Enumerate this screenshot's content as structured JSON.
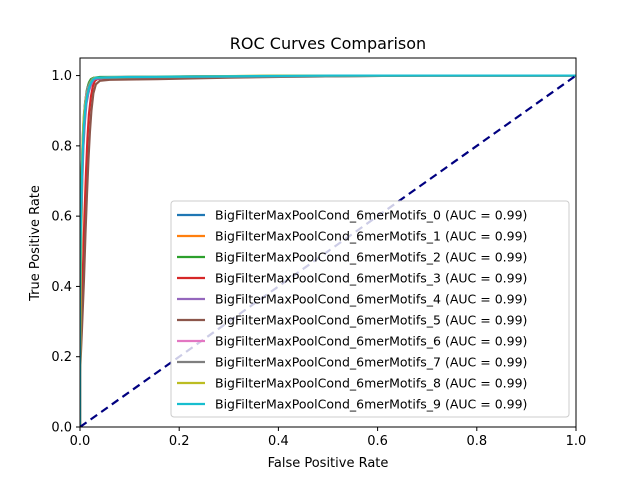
{
  "chart_data": {
    "type": "line",
    "title": "ROC Curves Comparison",
    "xlabel": "False Positive Rate",
    "ylabel": "True Positive Rate",
    "xlim": [
      0,
      1
    ],
    "ylim": [
      0,
      1.05
    ],
    "xticks": [
      "0.0",
      "0.2",
      "0.4",
      "0.6",
      "0.8",
      "1.0"
    ],
    "yticks": [
      "0.0",
      "0.2",
      "0.4",
      "0.6",
      "0.8",
      "1.0"
    ],
    "grid": false,
    "legend_position": "lower-right",
    "series": [
      {
        "name": "BigFilterMaxPoolCond_6merMotifs_0 (AUC = 0.99)",
        "color": "#1f77b4",
        "x": [
          0,
          0,
          0.002,
          0.004,
          0.006,
          0.008,
          0.01,
          0.013,
          0.016,
          0.02,
          0.025,
          0.03,
          0.05,
          0.1,
          0.3,
          0.6,
          1.0
        ],
        "y": [
          0,
          0.3,
          0.55,
          0.7,
          0.8,
          0.87,
          0.92,
          0.95,
          0.97,
          0.985,
          0.99,
          0.994,
          0.995,
          0.996,
          0.998,
          1.0,
          1.0
        ]
      },
      {
        "name": "BigFilterMaxPoolCond_6merMotifs_1 (AUC = 0.99)",
        "color": "#ff7f0e",
        "x": [
          0,
          0,
          0.002,
          0.004,
          0.006,
          0.009,
          0.012,
          0.016,
          0.02,
          0.025,
          0.03,
          0.06,
          0.2,
          0.45,
          0.7,
          1.0
        ],
        "y": [
          0,
          0.25,
          0.5,
          0.66,
          0.78,
          0.86,
          0.92,
          0.96,
          0.98,
          0.99,
          0.993,
          0.995,
          0.997,
          0.999,
          1.0,
          1.0
        ]
      },
      {
        "name": "BigFilterMaxPoolCond_6merMotifs_2 (AUC = 0.99)",
        "color": "#2ca02c",
        "x": [
          0,
          0,
          0.002,
          0.004,
          0.006,
          0.008,
          0.011,
          0.014,
          0.018,
          0.022,
          0.028,
          0.04,
          0.15,
          0.5,
          1.0
        ],
        "y": [
          0,
          0.35,
          0.6,
          0.74,
          0.83,
          0.89,
          0.93,
          0.96,
          0.98,
          0.99,
          0.994,
          0.996,
          0.997,
          1.0,
          1.0
        ]
      },
      {
        "name": "BigFilterMaxPoolCond_6merMotifs_3 (AUC = 0.99)",
        "color": "#d62728",
        "x": [
          0,
          0,
          0.003,
          0.006,
          0.009,
          0.012,
          0.015,
          0.018,
          0.022,
          0.026,
          0.03,
          0.035,
          0.05,
          0.2,
          0.5,
          1.0
        ],
        "y": [
          0,
          0.2,
          0.3,
          0.45,
          0.6,
          0.72,
          0.82,
          0.89,
          0.94,
          0.97,
          0.985,
          0.99,
          0.992,
          0.995,
          1.0,
          1.0
        ]
      },
      {
        "name": "BigFilterMaxPoolCond_6merMotifs_4 (AUC = 0.99)",
        "color": "#9467bd",
        "x": [
          0,
          0,
          0.002,
          0.004,
          0.007,
          0.01,
          0.013,
          0.017,
          0.021,
          0.026,
          0.03,
          0.05,
          0.25,
          0.55,
          1.0
        ],
        "y": [
          0,
          0.3,
          0.52,
          0.68,
          0.8,
          0.87,
          0.92,
          0.95,
          0.97,
          0.985,
          0.99,
          0.993,
          0.996,
          1.0,
          1.0
        ]
      },
      {
        "name": "BigFilterMaxPoolCond_6merMotifs_5 (AUC = 0.99)",
        "color": "#8c564b",
        "x": [
          0,
          0,
          0.004,
          0.008,
          0.011,
          0.014,
          0.017,
          0.02,
          0.023,
          0.027,
          0.032,
          0.04,
          0.06,
          0.155,
          0.3,
          0.44,
          0.7,
          1.0
        ],
        "y": [
          0,
          0.15,
          0.28,
          0.42,
          0.55,
          0.66,
          0.76,
          0.84,
          0.9,
          0.95,
          0.975,
          0.985,
          0.988,
          0.99,
          0.994,
          0.997,
          1.0,
          1.0
        ]
      },
      {
        "name": "BigFilterMaxPoolCond_6merMotifs_6 (AUC = 0.99)",
        "color": "#e377c2",
        "x": [
          0,
          0,
          0.002,
          0.004,
          0.006,
          0.009,
          0.012,
          0.016,
          0.02,
          0.025,
          0.03,
          0.08,
          0.3,
          0.6,
          1.0
        ],
        "y": [
          0,
          0.4,
          0.62,
          0.75,
          0.84,
          0.9,
          0.94,
          0.965,
          0.98,
          0.99,
          0.994,
          0.996,
          0.998,
          1.0,
          1.0
        ]
      },
      {
        "name": "BigFilterMaxPoolCond_6merMotifs_7 (AUC = 0.99)",
        "color": "#7f7f7f",
        "x": [
          0,
          0,
          0.002,
          0.004,
          0.006,
          0.009,
          0.012,
          0.016,
          0.02,
          0.025,
          0.03,
          0.1,
          0.44,
          0.7,
          1.0
        ],
        "y": [
          0,
          0.35,
          0.58,
          0.72,
          0.82,
          0.88,
          0.93,
          0.96,
          0.98,
          0.99,
          0.993,
          0.995,
          0.997,
          1.0,
          1.0
        ]
      },
      {
        "name": "BigFilterMaxPoolCond_6merMotifs_8 (AUC = 0.99)",
        "color": "#bcbd22",
        "x": [
          0,
          0,
          0.002,
          0.003,
          0.005,
          0.007,
          0.01,
          0.013,
          0.017,
          0.021,
          0.026,
          0.03,
          0.1,
          0.4,
          1.0
        ],
        "y": [
          0,
          0.15,
          0.5,
          0.7,
          0.8,
          0.87,
          0.91,
          0.94,
          0.96,
          0.98,
          0.99,
          0.994,
          0.996,
          1.0,
          1.0
        ]
      },
      {
        "name": "BigFilterMaxPoolCond_6merMotifs_9 (AUC = 0.99)",
        "color": "#17becf",
        "x": [
          0,
          0,
          0.001,
          0.002,
          0.004,
          0.006,
          0.008,
          0.011,
          0.014,
          0.018,
          0.022,
          0.027,
          0.032,
          0.1,
          0.51,
          1.0
        ],
        "y": [
          0,
          0.35,
          0.5,
          0.6,
          0.72,
          0.8,
          0.86,
          0.91,
          0.94,
          0.965,
          0.98,
          0.99,
          0.994,
          0.996,
          1.0,
          1.0
        ]
      }
    ],
    "reference_line": {
      "x": [
        0,
        1
      ],
      "y": [
        0,
        1
      ],
      "color": "#000080",
      "style": "dashed"
    }
  }
}
